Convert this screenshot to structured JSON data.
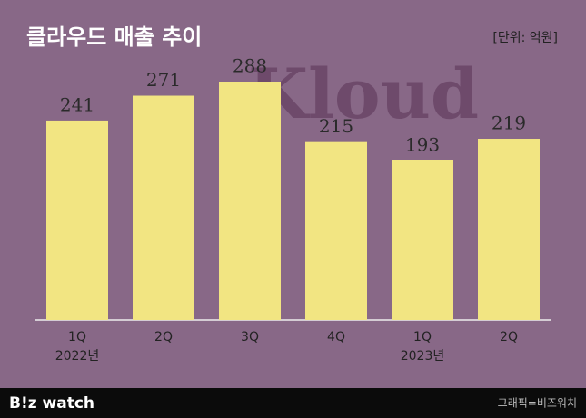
{
  "chart_data": {
    "type": "bar",
    "title": "클라우드 매출 추이",
    "unit": "[단위: 억원]",
    "watermark": "Kloud",
    "categories": [
      "1Q",
      "2Q",
      "3Q",
      "4Q",
      "1Q",
      "2Q"
    ],
    "year_labels": [
      "2022년",
      null,
      null,
      null,
      "2023년",
      null
    ],
    "values": [
      241,
      271,
      288,
      215,
      193,
      219
    ],
    "color": "#f2e582"
  },
  "footer": {
    "logo": "B!z watch",
    "credit": "그래픽=비즈워치"
  }
}
